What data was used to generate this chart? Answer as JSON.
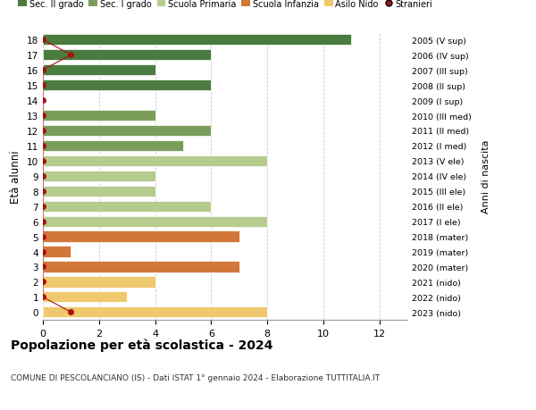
{
  "ages": [
    18,
    17,
    16,
    15,
    14,
    13,
    12,
    11,
    10,
    9,
    8,
    7,
    6,
    5,
    4,
    3,
    2,
    1,
    0
  ],
  "right_labels": [
    "2005 (V sup)",
    "2006 (IV sup)",
    "2007 (III sup)",
    "2008 (II sup)",
    "2009 (I sup)",
    "2010 (III med)",
    "2011 (II med)",
    "2012 (I med)",
    "2013 (V ele)",
    "2014 (IV ele)",
    "2015 (III ele)",
    "2016 (II ele)",
    "2017 (I ele)",
    "2018 (mater)",
    "2019 (mater)",
    "2020 (mater)",
    "2021 (nido)",
    "2022 (nido)",
    "2023 (nido)"
  ],
  "bar_values": [
    11,
    6,
    4,
    6,
    0,
    4,
    6,
    5,
    8,
    4,
    4,
    6,
    8,
    7,
    1,
    7,
    4,
    3,
    8
  ],
  "bar_colors": [
    "#4a7c3f",
    "#4a7c3f",
    "#4a7c3f",
    "#4a7c3f",
    "#4a7c3f",
    "#7a9e5a",
    "#7a9e5a",
    "#7a9e5a",
    "#b5cc8e",
    "#b5cc8e",
    "#b5cc8e",
    "#b5cc8e",
    "#b5cc8e",
    "#d2773a",
    "#d2773a",
    "#d2773a",
    "#f0c96e",
    "#f0c96e",
    "#f0c96e"
  ],
  "stranieri_x": [
    0,
    1,
    0,
    0,
    0,
    0,
    0,
    0,
    0,
    0,
    0,
    0,
    0,
    0,
    0,
    0,
    0,
    0,
    1
  ],
  "stranieri_y": [
    18,
    17,
    16,
    15,
    14,
    13,
    12,
    11,
    10,
    9,
    8,
    7,
    6,
    5,
    4,
    3,
    2,
    1,
    0
  ],
  "legend_labels": [
    "Sec. II grado",
    "Sec. I grado",
    "Scuola Primaria",
    "Scuola Infanzia",
    "Asilo Nido",
    "Stranieri"
  ],
  "legend_colors": [
    "#4a7c3f",
    "#7a9e5a",
    "#b5cc8e",
    "#d2773a",
    "#f0c96e",
    "#cc2222"
  ],
  "title": "Popolazione per età scolastica - 2024",
  "subtitle": "COMUNE DI PESCOLANCIANO (IS) - Dati ISTAT 1° gennaio 2024 - Elaborazione TUTTITALIA.IT",
  "ylabel": "Età alunni",
  "right_ylabel": "Anni di nascita",
  "xlim": [
    0,
    13
  ],
  "ylim": [
    -0.5,
    18.5
  ],
  "xticks": [
    0,
    2,
    4,
    6,
    8,
    10,
    12
  ],
  "background_color": "#ffffff",
  "grid_color": "#cccccc",
  "stranieri_color": "#aa1111"
}
